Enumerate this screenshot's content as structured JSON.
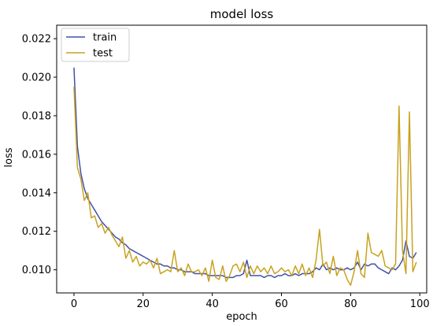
{
  "chart_data": {
    "type": "line",
    "title": "model loss",
    "xlabel": "epoch",
    "ylabel": "loss",
    "xlim": [
      -5,
      102
    ],
    "ylim": [
      0.0088,
      0.0227
    ],
    "xticks": [
      0,
      20,
      40,
      60,
      80,
      100
    ],
    "yticks": [
      0.01,
      0.012,
      0.014,
      0.016,
      0.018,
      0.02,
      0.022
    ],
    "ytick_labels": [
      "0.010",
      "0.012",
      "0.014",
      "0.016",
      "0.018",
      "0.020",
      "0.022"
    ],
    "legend_position": "top-left",
    "grid": false,
    "x": [
      0,
      1,
      2,
      3,
      4,
      5,
      6,
      7,
      8,
      9,
      10,
      11,
      12,
      13,
      14,
      15,
      16,
      17,
      18,
      19,
      20,
      21,
      22,
      23,
      24,
      25,
      26,
      27,
      28,
      29,
      30,
      31,
      32,
      33,
      34,
      35,
      36,
      37,
      38,
      39,
      40,
      41,
      42,
      43,
      44,
      45,
      46,
      47,
      48,
      49,
      50,
      51,
      52,
      53,
      54,
      55,
      56,
      57,
      58,
      59,
      60,
      61,
      62,
      63,
      64,
      65,
      66,
      67,
      68,
      69,
      70,
      71,
      72,
      73,
      74,
      75,
      76,
      77,
      78,
      79,
      80,
      81,
      82,
      83,
      84,
      85,
      86,
      87,
      88,
      89,
      90,
      91,
      92,
      93,
      94,
      95,
      96,
      97,
      98,
      99
    ],
    "series": [
      {
        "name": "train",
        "color": "#4152a8",
        "values": [
          0.0205,
          0.0164,
          0.015,
          0.0142,
          0.0137,
          0.0134,
          0.0131,
          0.0128,
          0.0125,
          0.0123,
          0.0121,
          0.0119,
          0.0117,
          0.0116,
          0.0114,
          0.0113,
          0.0111,
          0.011,
          0.0109,
          0.0108,
          0.0107,
          0.0106,
          0.0105,
          0.0104,
          0.0103,
          0.0103,
          0.0102,
          0.0102,
          0.0101,
          0.0101,
          0.01,
          0.01,
          0.0099,
          0.0099,
          0.0099,
          0.0098,
          0.0098,
          0.0098,
          0.0098,
          0.0097,
          0.0097,
          0.0097,
          0.0097,
          0.0097,
          0.0096,
          0.0096,
          0.0096,
          0.0097,
          0.0097,
          0.0098,
          0.0105,
          0.0097,
          0.0097,
          0.0097,
          0.0097,
          0.0096,
          0.0097,
          0.0097,
          0.0096,
          0.0097,
          0.0097,
          0.0098,
          0.0097,
          0.0097,
          0.0098,
          0.0097,
          0.0098,
          0.0098,
          0.0098,
          0.0099,
          0.0101,
          0.01,
          0.0103,
          0.01,
          0.0101,
          0.01,
          0.0101,
          0.01,
          0.01,
          0.0101,
          0.01,
          0.0101,
          0.0104,
          0.01,
          0.0103,
          0.0102,
          0.0103,
          0.0103,
          0.0101,
          0.01,
          0.0099,
          0.0098,
          0.0101,
          0.01,
          0.0102,
          0.0105,
          0.0115,
          0.0107,
          0.0106,
          0.0109
        ]
      },
      {
        "name": "test",
        "color": "#c8a21e",
        "values": [
          0.0195,
          0.0153,
          0.0147,
          0.0136,
          0.014,
          0.0127,
          0.0128,
          0.0122,
          0.0124,
          0.0119,
          0.0122,
          0.0118,
          0.0115,
          0.0112,
          0.0117,
          0.0106,
          0.011,
          0.0104,
          0.0107,
          0.0102,
          0.0104,
          0.0103,
          0.0105,
          0.0101,
          0.0106,
          0.0098,
          0.0099,
          0.01,
          0.0099,
          0.011,
          0.0099,
          0.0101,
          0.0097,
          0.0103,
          0.0099,
          0.0099,
          0.01,
          0.0097,
          0.0101,
          0.0094,
          0.0105,
          0.0096,
          0.0095,
          0.0102,
          0.0094,
          0.0097,
          0.0102,
          0.0103,
          0.0099,
          0.0104,
          0.0096,
          0.0102,
          0.0098,
          0.0102,
          0.0099,
          0.0101,
          0.0098,
          0.0102,
          0.0098,
          0.0099,
          0.0101,
          0.0099,
          0.01,
          0.0097,
          0.0102,
          0.0098,
          0.0103,
          0.0097,
          0.0101,
          0.0096,
          0.0105,
          0.0121,
          0.0102,
          0.0104,
          0.0098,
          0.0107,
          0.0097,
          0.0101,
          0.01,
          0.0095,
          0.0092,
          0.0099,
          0.011,
          0.0098,
          0.0096,
          0.0119,
          0.0109,
          0.0108,
          0.0107,
          0.011,
          0.0102,
          0.0101,
          0.01,
          0.0103,
          0.0185,
          0.011,
          0.0098,
          0.0182,
          0.0099,
          0.0104
        ]
      }
    ]
  }
}
